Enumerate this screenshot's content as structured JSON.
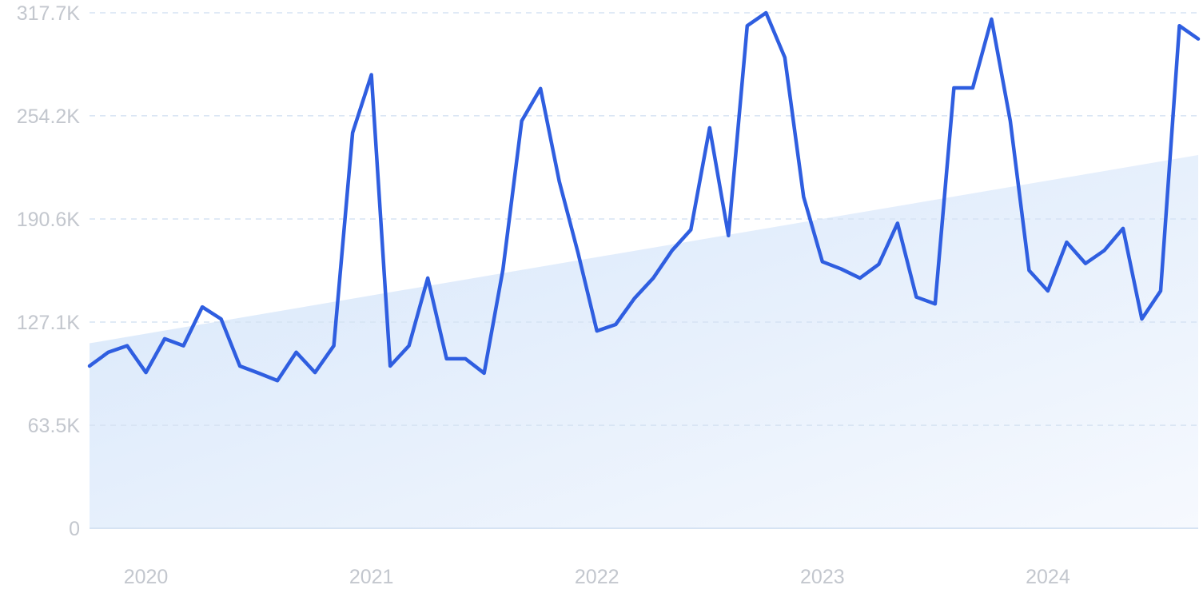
{
  "chart_data": {
    "type": "line",
    "title": "",
    "xlabel": "",
    "ylabel": "",
    "ylim": [
      0,
      317700
    ],
    "grid": true,
    "legend": "none",
    "y_ticks": [
      {
        "value": 0,
        "label": "0"
      },
      {
        "value": 63500,
        "label": "63.5K"
      },
      {
        "value": 127100,
        "label": "127.1K"
      },
      {
        "value": 190600,
        "label": "190.6K"
      },
      {
        "value": 254200,
        "label": "254.2K"
      },
      {
        "value": 317700,
        "label": "317.7K"
      }
    ],
    "x_ticks": [
      {
        "value": "2020-01",
        "label": "2020"
      },
      {
        "value": "2021-01",
        "label": "2021"
      },
      {
        "value": "2022-01",
        "label": "2022"
      },
      {
        "value": "2023-01",
        "label": "2023"
      },
      {
        "value": "2024-01",
        "label": "2024"
      }
    ],
    "x_range": [
      "2019-10",
      "2024-09"
    ],
    "series": [
      {
        "color": "#2f5ee0",
        "x": [
          "2019-10",
          "2019-11",
          "2019-12",
          "2020-01",
          "2020-02",
          "2020-03",
          "2020-04",
          "2020-05",
          "2020-06",
          "2020-07",
          "2020-08",
          "2020-09",
          "2020-10",
          "2020-11",
          "2020-12",
          "2021-01",
          "2021-02",
          "2021-03",
          "2021-04",
          "2021-05",
          "2021-06",
          "2021-07",
          "2021-08",
          "2021-09",
          "2021-10",
          "2021-11",
          "2021-12",
          "2022-01",
          "2022-02",
          "2022-03",
          "2022-04",
          "2022-05",
          "2022-06",
          "2022-07",
          "2022-08",
          "2022-09",
          "2022-10",
          "2022-11",
          "2022-12",
          "2023-01",
          "2023-02",
          "2023-03",
          "2023-04",
          "2023-05",
          "2023-06",
          "2023-07",
          "2023-08",
          "2023-09",
          "2023-10",
          "2023-11",
          "2023-12",
          "2024-01",
          "2024-02",
          "2024-03",
          "2024-04",
          "2024-05",
          "2024-06",
          "2024-07",
          "2024-08",
          "2024-09"
        ],
        "values": [
          100000,
          108500,
          112500,
          96000,
          116800,
          112500,
          136400,
          129000,
          100000,
          95600,
          91000,
          108500,
          96000,
          112500,
          243800,
          279500,
          100000,
          112500,
          154200,
          104500,
          104500,
          95600,
          159400,
          251100,
          271000,
          213700,
          169600,
          121600,
          125600,
          141700,
          154200,
          171200,
          184000,
          246800,
          180400,
          309700,
          317700,
          290200,
          204300,
          164300,
          159800,
          154200,
          162700,
          188000,
          142500,
          138300,
          271400,
          271400,
          313800,
          251000,
          158900,
          146300,
          176300,
          163200,
          171200,
          184800,
          129000,
          146300,
          309700,
          301600
        ]
      }
    ],
    "trend": {
      "color": "#dbe8fa",
      "start": {
        "x": "2019-10",
        "y": 114000
      },
      "end": {
        "x": "2024-09",
        "y": 230000
      }
    }
  }
}
